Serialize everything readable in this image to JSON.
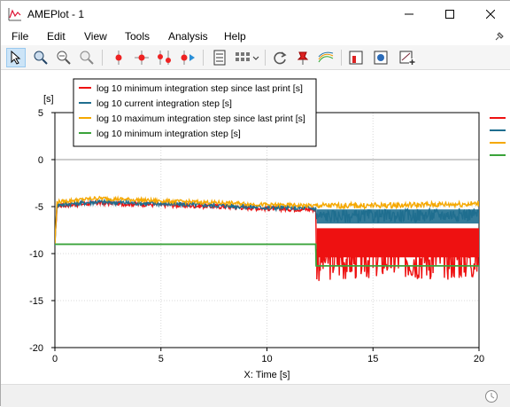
{
  "window": {
    "title": "AMEPlot - 1"
  },
  "menu": {
    "items": [
      "File",
      "Edit",
      "View",
      "Tools",
      "Analysis",
      "Help"
    ]
  },
  "toolbar": {
    "icons": [
      "select-arrow-icon",
      "zoom-in-icon",
      "zoom-out-icon",
      "zoom-fit-icon",
      "marker-icon",
      "crosshair-marker-icon",
      "two-markers-icon",
      "marker-play-icon",
      "data-table-icon",
      "grid-layout-icon",
      "refresh-icon",
      "pin-marker-icon",
      "multi-curve-icon",
      "plot-red-icon",
      "plot-export-icon",
      "plot-add-icon"
    ]
  },
  "colors": {
    "red": "#ee1111",
    "blue": "#1f6e8f",
    "orange": "#f5a800",
    "green": "#3aa33a"
  },
  "chart_data": {
    "type": "line",
    "xlabel": "X: Time [s]",
    "ylabel": "[s]",
    "xlim": [
      0,
      20
    ],
    "ylim": [
      -20,
      5
    ],
    "xticks": [
      0,
      5,
      10,
      15,
      20
    ],
    "yticks": [
      5,
      0,
      -5,
      -10,
      -15,
      -20
    ],
    "grid": true,
    "legend_position": "top-left",
    "series": [
      {
        "name": "log 10 minimum integration step since last print [s]",
        "color": "#ee1111",
        "x": [
          0,
          0.1,
          2,
          5,
          8,
          10,
          12.3,
          12.35,
          15,
          20
        ],
        "y": [
          -9,
          -4.9,
          -4.6,
          -4.8,
          -5.0,
          -5.2,
          -5.3,
          -10.5,
          -10.3,
          -10.3
        ]
      },
      {
        "name": "log 10 current integration step [s]",
        "color": "#1f6e8f",
        "x": [
          0,
          0.1,
          2,
          5,
          8,
          10,
          12.3,
          12.35,
          15,
          20
        ],
        "y": [
          -9,
          -4.8,
          -4.5,
          -4.7,
          -4.9,
          -5.1,
          -5.2,
          -6.0,
          -6.0,
          -5.8
        ]
      },
      {
        "name": "log 10 maximum integration step since last print [s]",
        "color": "#f5a800",
        "x": [
          0,
          0.1,
          2,
          5,
          8,
          10,
          12.3,
          12.35,
          15,
          20
        ],
        "y": [
          -9,
          -4.5,
          -4.1,
          -4.4,
          -4.6,
          -4.8,
          -4.9,
          -4.9,
          -4.9,
          -4.7
        ]
      },
      {
        "name": "log 10 minimum integration step [s]",
        "color": "#3aa33a",
        "x": [
          0,
          0.02,
          12.3,
          12.32,
          12.35,
          20
        ],
        "y": [
          -9,
          -9.0,
          -9.0,
          -11.3,
          -11.3,
          -11.3
        ]
      }
    ]
  }
}
